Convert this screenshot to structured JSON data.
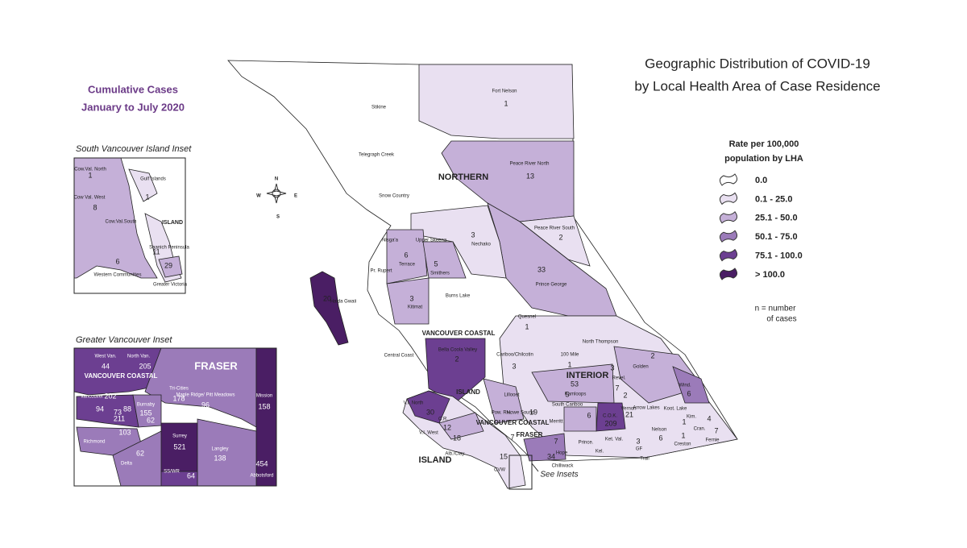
{
  "header": {
    "title": "Geographic Distribution of COVID-19",
    "subtitle": "by Local Health Area of Case Residence"
  },
  "side_title": [
    "Cumulative Cases",
    "January to July 2020"
  ],
  "legend": {
    "title": [
      "Rate per 100,000",
      "population by LHA"
    ],
    "classes": [
      {
        "label": "0.0",
        "color": "#ffffff"
      },
      {
        "label": "0.1 - 25.0",
        "color": "#e9e0f1"
      },
      {
        "label": "25.1 - 50.0",
        "color": "#c5b0d8"
      },
      {
        "label": "50.1 - 75.0",
        "color": "#9b7bb9"
      },
      {
        "label": "75.1 - 100.0",
        "color": "#6c3f91"
      },
      {
        "label": "> 100.0",
        "color": "#4a1e64"
      }
    ],
    "note": [
      "n = number",
      "of cases"
    ]
  },
  "compass": [
    "N",
    "E",
    "S",
    "W"
  ],
  "see_insets": "See Insets",
  "main_map": {
    "regions": [
      "NORTHERN",
      "INTERIOR",
      "VANCOUVER COASTAL",
      "ISLAND",
      "VANCOUVER COASTAL",
      "FRASER",
      "ISLAND"
    ],
    "areas": [
      {
        "name": "Fort Nelson",
        "cases": 1
      },
      {
        "name": "Stikine"
      },
      {
        "name": "Telegraph Creek"
      },
      {
        "name": "Peace River North",
        "cases": 13
      },
      {
        "name": "Snow Country"
      },
      {
        "name": "Peace River South",
        "cases": 2
      },
      {
        "name": "Nisga'a"
      },
      {
        "name": "Upper Skeena"
      },
      {
        "name": "Nechako",
        "cases": 3
      },
      {
        "name": "Terrace",
        "cases": 6
      },
      {
        "name": "Smithers",
        "cases": 5
      },
      {
        "name": "Pr. Rupert"
      },
      {
        "name": "Prince George",
        "cases": 33
      },
      {
        "name": "Kitimat",
        "cases": 3
      },
      {
        "name": "Burns Lake"
      },
      {
        "name": "Haida Gwaii",
        "cases": 20
      },
      {
        "name": "Quesnel",
        "cases": 1
      },
      {
        "name": "Bella Coola Valley",
        "cases": 2
      },
      {
        "name": "Central Coast"
      },
      {
        "name": "Cariboo/Chilcotin",
        "cases": 3
      },
      {
        "name": "100 Mile",
        "cases": 1
      },
      {
        "name": "North Thompson"
      },
      {
        "name": "Golden",
        "cases": 2
      },
      {
        "name": "Revel.",
        "cases": 3
      },
      {
        "name": "Kamloops",
        "cases": 53
      },
      {
        "name": "Wind.",
        "cases": 6
      },
      {
        "name": "Lillooet"
      },
      {
        "name": "V.I. North",
        "cases": 30
      },
      {
        "name": "Pow. Riv."
      },
      {
        "name": "Howe Sound",
        "cases": 19
      },
      {
        "name": "South Cariboo",
        "cases": 5
      },
      {
        "name": "Merritt",
        "cases": 6
      },
      {
        "name": "C.O.K.",
        "cases": 209
      },
      {
        "name": "Vernon",
        "cases": 21
      },
      {
        "name": "Arrow Lakes"
      },
      {
        "name": "Koot. Lake"
      },
      {
        "name": "Kim."
      },
      {
        "name": "Nelson"
      },
      {
        "name": "Cran."
      },
      {
        "name": "Fernie",
        "cases": 7
      },
      {
        "name": "Creston",
        "cases": 1
      },
      {
        "name": "C.R.",
        "cases": 12
      },
      {
        "name": "V.I. West"
      },
      {
        "cases": 18
      },
      {
        "name": "Alb./Clay."
      },
      {
        "name": "Prince."
      },
      {
        "name": "Kel."
      },
      {
        "name": "Ket. Val."
      },
      {
        "name": "Hope",
        "cases": 34
      },
      {
        "name": "Chilliwack"
      },
      {
        "name": "Trail"
      },
      {
        "name": "GF"
      },
      {
        "name": "CVW"
      },
      {
        "cases": 7
      },
      {
        "cases": 7
      },
      {
        "cases": 3
      },
      {
        "cases": 6
      },
      {
        "cases": 4
      },
      {
        "cases": 1
      },
      {
        "cases": 2
      },
      {
        "cases": 7
      },
      {
        "cases": 15
      }
    ]
  },
  "insets": [
    {
      "title": "South Vancouver Island Inset",
      "regions": [
        "ISLAND"
      ],
      "areas": [
        {
          "name": "Cow.Val. North",
          "cases": 1
        },
        {
          "name": "Gulf Islands",
          "cases": 1
        },
        {
          "name": "Cow Val. West",
          "cases": 8
        },
        {
          "name": "Cow.Val.South"
        },
        {
          "name": "Saanich Peninsula",
          "cases": 11
        },
        {
          "name": "Western Communities",
          "cases": 6
        },
        {
          "name": "Greater Victoria",
          "cases": 29
        }
      ]
    },
    {
      "title": "Greater Vancouver Inset",
      "regions": [
        "VANCOUVER COASTAL",
        "FRASER"
      ],
      "areas": [
        {
          "name": "West Van.",
          "cases": 44
        },
        {
          "name": "North Van.",
          "cases": 205
        },
        {
          "name": "Tri-Cities",
          "cases": 178
        },
        {
          "name": "Maple Ridge/ Pitt Meadows",
          "cases": 96
        },
        {
          "name": "Mission",
          "cases": 158
        },
        {
          "name": "Vancouver",
          "cases": 202
        },
        {
          "cases": 94
        },
        {
          "cases": 73
        },
        {
          "cases": 88
        },
        {
          "cases": 211
        },
        {
          "name": "Burnaby",
          "cases": 155
        },
        {
          "cases": 62
        },
        {
          "name": "Richmond",
          "cases": 103
        },
        {
          "name": "Delta",
          "cases": 62
        },
        {
          "name": "Surrey",
          "cases": 521
        },
        {
          "name": "Langley",
          "cases": 138
        },
        {
          "name": "Abbotsford",
          "cases": 454
        },
        {
          "name": "SS/WR",
          "cases": 64
        }
      ]
    }
  ]
}
